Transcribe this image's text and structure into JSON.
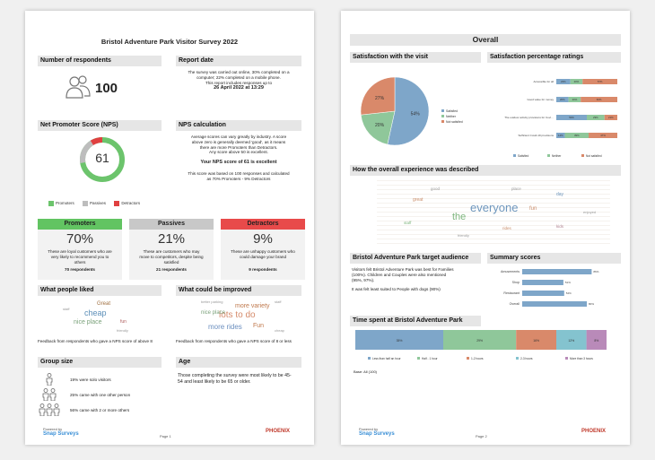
{
  "page1": {
    "title": "Bristol Adventure Park Visitor Survey 2022",
    "respondents": {
      "header": "Number of respondents",
      "count": "100"
    },
    "report_date": {
      "header": "Report date",
      "line1": "The survey was carried out online, 30% completed on a",
      "line2": "computer; 22% completed on a mobile phone.",
      "line3": "This report includes responses up to",
      "date": "26 April 2022 at 13:29"
    },
    "nps": {
      "header": "Net Promoter Score (NPS)",
      "score": "61",
      "legend": [
        "Promoters",
        "Passives",
        "Detractors"
      ]
    },
    "nps_calc": {
      "header": "NPS calculation",
      "line1": "Average scores can vary greatly by industry. A score",
      "line2": "above zero is generally deemed 'good', as it means",
      "line3": "there are more Promoters than Detractors.",
      "line4": "Any score above 50 is excellent.",
      "result": "Your NPS score of 61 is excellent",
      "basis1": "This score was based on 100 responses and calculated",
      "basis2": "as 70% Promoters - 9% Detractors"
    },
    "cards": [
      {
        "title": "Promoters",
        "pct": "70%",
        "line1": "These are loyal customers who are",
        "line2": "very likely to recommend you to",
        "line3": "others",
        "count": "70 respondents"
      },
      {
        "title": "Passives",
        "pct": "21%",
        "line1": "These are customers who may",
        "line2": "move to competitors, despite being",
        "line3": "satisfied",
        "count": "21 respondents"
      },
      {
        "title": "Detractors",
        "pct": "9%",
        "line1": "These are unhappy customers who",
        "line2": "could damage your brand",
        "line3": "",
        "count": "9 respondents"
      }
    ],
    "liked": {
      "header": "What people liked",
      "words": [
        "Great",
        "cheap",
        "nice place",
        "fun",
        "staff",
        "friendly"
      ],
      "note": "Feedback from respondents who gave a NPS score of above 8"
    },
    "improved": {
      "header": "What could be improved",
      "words": [
        "more variety",
        "lots to do",
        "more rides",
        "Fun",
        "nice place",
        "cheap",
        "better parking",
        "staff",
        "food",
        "toilets"
      ],
      "note": "Feedback from respondents who gave a NPS score of 8 or less"
    },
    "group": {
      "header": "Group size",
      "items": [
        "19% were solo visitors",
        "25% came with one other person",
        "56% came with 2 or more others"
      ]
    },
    "age": {
      "header": "Age",
      "text": "Those completing the survey were most likely to be 45-54 and least likely to be 65 or older."
    },
    "footer": {
      "powered": "Powered by",
      "brand": "Snap Surveys",
      "page": "Page 1",
      "logo": "PHOENIX"
    }
  },
  "page2": {
    "title": "Overall",
    "satisfaction": {
      "header": "Satisfaction with the visit"
    },
    "pct_ratings": {
      "header": "Satisfaction percentage ratings"
    },
    "experience": {
      "header": "How the overall experience was described",
      "words": [
        "everyone",
        "the",
        "fun",
        "great",
        "day",
        "staff",
        "kids",
        "place",
        "good",
        "rides",
        "friendly",
        "enjoyed"
      ]
    },
    "audience": {
      "header": "Bristol Adventure Park target audience",
      "line1": "Visitors felt Bristol Adventure Park was best for Families",
      "line2": "(100%). Children and Couples were also mentioned",
      "line3": "(95%, 97%).",
      "line4": "It was felt least suited to People with dogs (90%)"
    },
    "summary": {
      "header": "Summary scores"
    },
    "time": {
      "header": "Time spent at Bristol Adventure Park",
      "base": "Base: All (100)"
    },
    "footer": {
      "powered": "Powered by",
      "brand": "Snap Surveys",
      "page": "Page 2",
      "logo": "PHOENIX"
    }
  },
  "chart_data": [
    {
      "type": "pie",
      "title": "Satisfaction with the visit",
      "categories": [
        "Satisfied",
        "Neither",
        "Not satisfied"
      ],
      "values": [
        54,
        20,
        27
      ],
      "colors": [
        "#7ea6c9",
        "#8fc79a",
        "#d9896a"
      ],
      "legend": "right"
    },
    {
      "type": "bar",
      "orientation": "horizontal",
      "stacked": true,
      "title": "Satisfaction percentage ratings",
      "categories": [
        "Accessible for all",
        "Good value for money",
        "The outdoor activity provisions for Covid-19 with full contact",
        "Sufficient Covid-19 provisions"
      ],
      "series": [
        {
          "name": "Satisfied",
          "values": [
            23,
            20,
            50,
            14
          ]
        },
        {
          "name": "Neither",
          "values": [
            20,
            20,
            29,
            39
          ]
        },
        {
          "name": "Not satisfied",
          "values": [
            57,
            60,
            21,
            47
          ]
        }
      ],
      "legend": "bottom"
    },
    {
      "type": "bar",
      "orientation": "horizontal",
      "title": "Summary scores",
      "categories": [
        "Amusements",
        "Shop",
        "Restaurant",
        "Overall"
      ],
      "values": [
        86,
        51,
        52,
        80
      ],
      "xlim": [
        0,
        100
      ]
    },
    {
      "type": "bar",
      "orientation": "horizontal",
      "stacked": true,
      "title": "Time spent at Bristol Adventure Park",
      "categories": [
        "All"
      ],
      "series": [
        {
          "name": "Less than half an hour",
          "values": [
            35
          ]
        },
        {
          "name": "Half - 1 hour",
          "values": [
            29
          ]
        },
        {
          "name": "1-2 hours",
          "values": [
            16
          ]
        },
        {
          "name": "2-3 hours",
          "values": [
            12
          ]
        },
        {
          "name": "More than 3 hours",
          "values": [
            8
          ]
        }
      ],
      "legend": "bottom"
    }
  ]
}
